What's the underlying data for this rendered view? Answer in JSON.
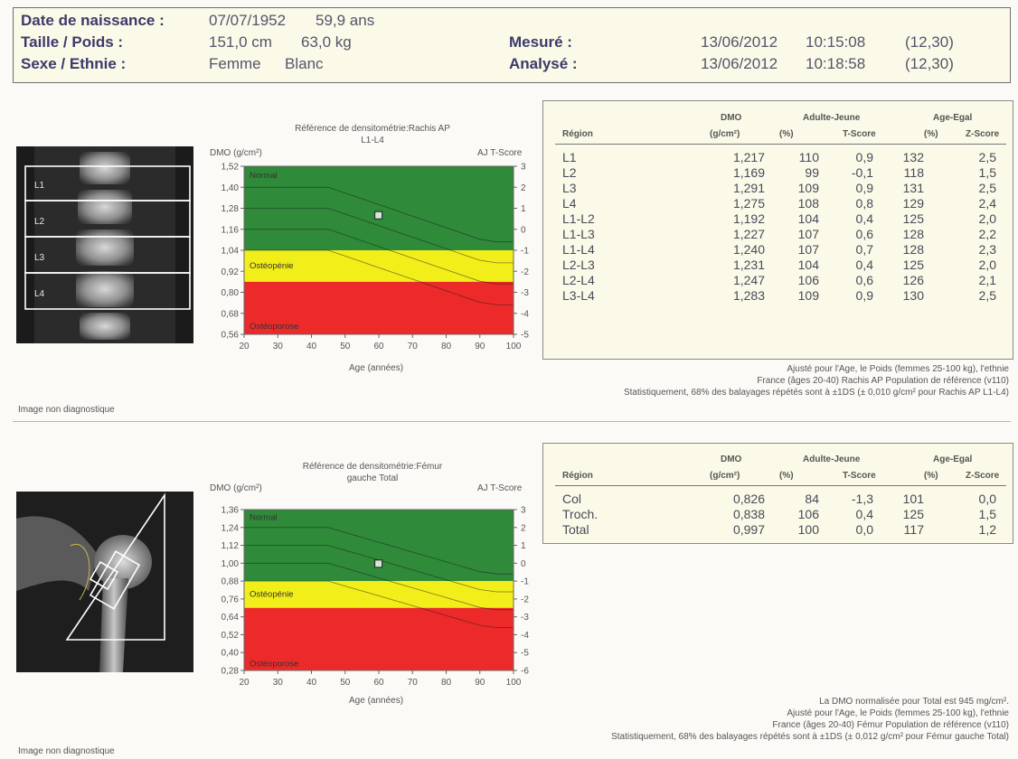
{
  "header": {
    "labels": {
      "dob": "Date de naissance :",
      "size_weight": "Taille / Poids :",
      "sex_ethnicity": "Sexe / Ethnie :",
      "measured": "Mesuré :",
      "analyzed": "Analysé :"
    },
    "values": {
      "dob": "07/07/1952",
      "age": "59,9 ans",
      "height": "151,0 cm",
      "weight": "63,0 kg",
      "sex": "Femme",
      "ethnicity": "Blanc",
      "measured_date": "13/06/2012",
      "measured_time": "10:15:08",
      "measured_code": "(12,30)",
      "analyzed_date": "13/06/2012",
      "analyzed_time": "10:18:58",
      "analyzed_code": "(12,30)"
    }
  },
  "spine": {
    "scan_labels": [
      "L1",
      "L2",
      "L3",
      "L4"
    ],
    "non_diagnostic": "Image non diagnostique",
    "notes": [
      "Ajusté pour l'Age, le Poids (femmes 25-100 kg), l'ethnie",
      "France (âges 20-40) Rachis AP Population de référence (v110)",
      "Statistiquement, 68% des balayages répétés sont à ±1DS (± 0,010 g/cm² pour Rachis AP L1-L4)"
    ],
    "table": {
      "headers": {
        "region": "Région",
        "bmd": "DMO",
        "bmd_unit": "(g/cm²)",
        "young_adult": "Adulte-Jeune",
        "age_matched": "Age-Egal",
        "pct": "(%)",
        "t_score": "T-Score",
        "z_score": "Z-Score"
      },
      "rows": [
        {
          "region": "L1",
          "bmd": "1,217",
          "ya_pct": "110",
          "t": "0,9",
          "am_pct": "132",
          "z": "2,5"
        },
        {
          "region": "L2",
          "bmd": "1,169",
          "ya_pct": "99",
          "t": "-0,1",
          "am_pct": "118",
          "z": "1,5"
        },
        {
          "region": "L3",
          "bmd": "1,291",
          "ya_pct": "109",
          "t": "0,9",
          "am_pct": "131",
          "z": "2,5"
        },
        {
          "region": "L4",
          "bmd": "1,275",
          "ya_pct": "108",
          "t": "0,8",
          "am_pct": "129",
          "z": "2,4"
        },
        {
          "region": "L1-L2",
          "bmd": "1,192",
          "ya_pct": "104",
          "t": "0,4",
          "am_pct": "125",
          "z": "2,0"
        },
        {
          "region": "L1-L3",
          "bmd": "1,227",
          "ya_pct": "107",
          "t": "0,6",
          "am_pct": "128",
          "z": "2,2"
        },
        {
          "region": "L1-L4",
          "bmd": "1,240",
          "ya_pct": "107",
          "t": "0,7",
          "am_pct": "128",
          "z": "2,3"
        },
        {
          "region": "L2-L3",
          "bmd": "1,231",
          "ya_pct": "104",
          "t": "0,4",
          "am_pct": "125",
          "z": "2,0"
        },
        {
          "region": "L2-L4",
          "bmd": "1,247",
          "ya_pct": "106",
          "t": "0,6",
          "am_pct": "126",
          "z": "2,1"
        },
        {
          "region": "L3-L4",
          "bmd": "1,283",
          "ya_pct": "109",
          "t": "0,9",
          "am_pct": "130",
          "z": "2,5"
        }
      ]
    }
  },
  "femur": {
    "non_diagnostic": "Image non diagnostique",
    "notes": [
      "La DMO normalisée pour Total est 945 mg/cm².",
      "Ajusté pour l'Age, le Poids (femmes 25-100 kg), l'ethnie",
      "France (âges 20-40) Fémur Population de référence (v110)",
      "Statistiquement, 68% des balayages répétés sont à ±1DS (± 0,012 g/cm² pour Fémur gauche Total)"
    ],
    "table": {
      "headers": {
        "region": "Région",
        "bmd": "DMO",
        "bmd_unit": "(g/cm²)",
        "young_adult": "Adulte-Jeune",
        "age_matched": "Age-Egal",
        "pct": "(%)",
        "t_score": "T-Score",
        "z_score": "Z-Score"
      },
      "rows": [
        {
          "region": "Col",
          "bmd": "0,826",
          "ya_pct": "84",
          "t": "-1,3",
          "am_pct": "101",
          "z": "0,0"
        },
        {
          "region": "Troch.",
          "bmd": "0,838",
          "ya_pct": "106",
          "t": "0,4",
          "am_pct": "125",
          "z": "1,5"
        },
        {
          "region": "Total",
          "bmd": "0,997",
          "ya_pct": "100",
          "t": "0,0",
          "am_pct": "117",
          "z": "1,2"
        }
      ]
    }
  },
  "chart_data": [
    {
      "type": "area",
      "title_line1": "Référence de densitométrie:Rachis AP",
      "title_line2": "L1-L4",
      "ylabel": "DMO (g/cm²)",
      "y2label": "AJ T-Score",
      "xlabel": "Age (années)",
      "x_ticks": [
        20,
        30,
        40,
        50,
        60,
        70,
        80,
        90,
        100
      ],
      "y_ticks": [
        "1,52",
        "1,40",
        "1,28",
        "1,16",
        "1,04",
        "0,92",
        "0,80",
        "0,68",
        "0,56"
      ],
      "y_tick_values": [
        1.52,
        1.4,
        1.28,
        1.16,
        1.04,
        0.92,
        0.8,
        0.68,
        0.56
      ],
      "t_ticks": [
        "3",
        "2",
        "1",
        "0",
        "-1",
        "-2",
        "-3",
        "-4",
        "-5"
      ],
      "xlim": [
        20,
        100
      ],
      "ylim": [
        0.56,
        1.52
      ],
      "zone_labels": [
        "Normal",
        "Ostéopénie",
        "Ostéoporose"
      ],
      "zones": [
        {
          "name": "Normal",
          "from_t": -1,
          "to_t": 3,
          "color": "#2f8a3a"
        },
        {
          "name": "Ostéopénie",
          "from_t": -2.5,
          "to_t": -1,
          "color": "#f2ee1a"
        },
        {
          "name": "Ostéoporose",
          "from_t": -5,
          "to_t": -2.5,
          "color": "#ec2a2a"
        }
      ],
      "patient_point": {
        "x": 59.9,
        "y": 1.24
      }
    },
    {
      "type": "area",
      "title_line1": "Référence de densitométrie:Fémur",
      "title_line2": "gauche Total",
      "ylabel": "DMO (g/cm²)",
      "y2label": "AJ T-Score",
      "xlabel": "Age (années)",
      "x_ticks": [
        20,
        30,
        40,
        50,
        60,
        70,
        80,
        90,
        100
      ],
      "y_ticks": [
        "1,36",
        "1,24",
        "1,12",
        "1,00",
        "0,88",
        "0,76",
        "0,64",
        "0,52",
        "0,40",
        "0,28"
      ],
      "y_tick_values": [
        1.36,
        1.24,
        1.12,
        1.0,
        0.88,
        0.76,
        0.64,
        0.52,
        0.4,
        0.28
      ],
      "t_ticks": [
        "3",
        "2",
        "1",
        "0",
        "-1",
        "-2",
        "-3",
        "-4",
        "-5",
        "-6"
      ],
      "xlim": [
        20,
        100
      ],
      "ylim": [
        0.28,
        1.36
      ],
      "zone_labels": [
        "Normal",
        "Ostéopénie",
        "Ostéoporose"
      ],
      "zones": [
        {
          "name": "Normal",
          "from_t": -1,
          "to_t": 3,
          "color": "#2f8a3a"
        },
        {
          "name": "Ostéopénie",
          "from_t": -2.5,
          "to_t": -1,
          "color": "#f2ee1a"
        },
        {
          "name": "Ostéoporose",
          "from_t": -6,
          "to_t": -2.5,
          "color": "#ec2a2a"
        }
      ],
      "patient_point": {
        "x": 59.9,
        "y": 0.997
      }
    }
  ]
}
